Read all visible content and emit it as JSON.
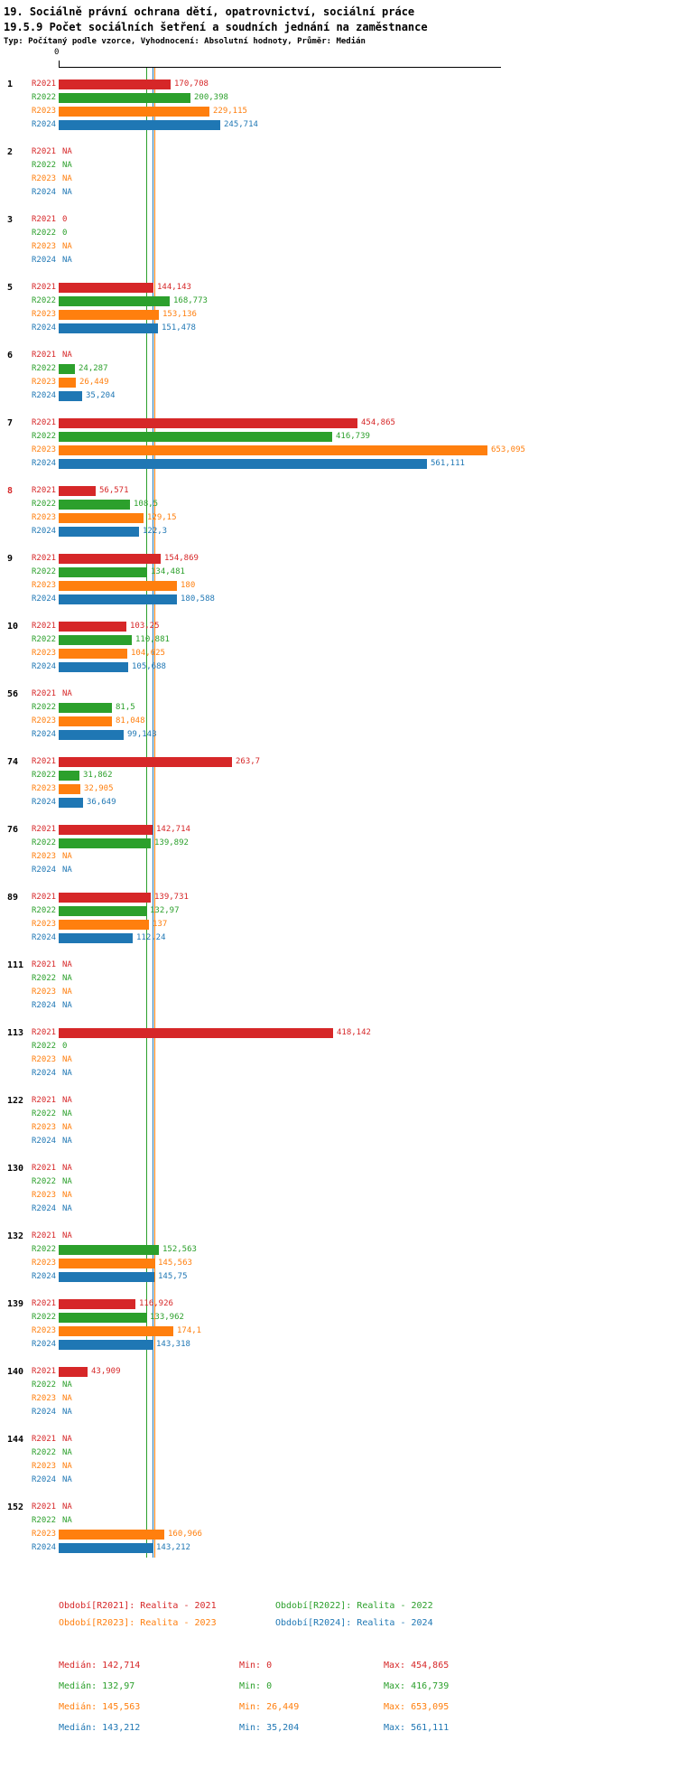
{
  "header": {
    "title_line1": "19. Sociálně právní ochrana dětí, opatrovnictví, sociální práce",
    "title_line2": "19.5.9 Počet sociálních šetření a soudních jednání na zaměstnance",
    "subtitle": "Typ: Počítaný podle vzorce, Vyhodnocení: Absolutní hodnoty, Průměr: Medián"
  },
  "axis": {
    "zero_label": "0"
  },
  "colors": {
    "r2021": "#d62728",
    "r2022": "#2ca02c",
    "r2023": "#ff7f0e",
    "r2024": "#1f77b4",
    "axis": "#000000",
    "group_label": "#000000",
    "highlight_group_label": "#d62728"
  },
  "chart_data": {
    "type": "bar",
    "orientation": "horizontal",
    "title": "19.5.9 Počet sociálních šetření a soudních jednání na zaměstnance",
    "series_labels": [
      "R2021",
      "R2022",
      "R2023",
      "R2024"
    ],
    "series_colors": [
      "#d62728",
      "#2ca02c",
      "#ff7f0e",
      "#1f77b4"
    ],
    "xlim": [
      0,
      670
    ],
    "na_label": "NA",
    "grid": false,
    "legend_position": "bottom",
    "medians": [
      142.714,
      132.97,
      145.563,
      143.212
    ],
    "groups": [
      {
        "id": "1",
        "highlight": false,
        "values": [
          170.708,
          200.398,
          229.115,
          245.714
        ],
        "labels": [
          "170,708",
          "200,398",
          "229,115",
          "245,714"
        ]
      },
      {
        "id": "2",
        "highlight": false,
        "values": [
          null,
          null,
          null,
          null
        ],
        "labels": [
          "NA",
          "NA",
          "NA",
          "NA"
        ]
      },
      {
        "id": "3",
        "highlight": false,
        "values": [
          0,
          0,
          null,
          null
        ],
        "labels": [
          "0",
          "0",
          "NA",
          "NA"
        ]
      },
      {
        "id": "5",
        "highlight": false,
        "values": [
          144.143,
          168.773,
          153.136,
          151.478
        ],
        "labels": [
          "144,143",
          "168,773",
          "153,136",
          "151,478"
        ]
      },
      {
        "id": "6",
        "highlight": false,
        "values": [
          null,
          24.287,
          26.449,
          35.204
        ],
        "labels": [
          "NA",
          "24,287",
          "26,449",
          "35,204"
        ]
      },
      {
        "id": "7",
        "highlight": false,
        "values": [
          454.865,
          416.739,
          653.095,
          561.111
        ],
        "labels": [
          "454,865",
          "416,739",
          "653,095",
          "561,111"
        ]
      },
      {
        "id": "8",
        "highlight": true,
        "values": [
          56.571,
          108.5,
          129.15,
          122.3
        ],
        "labels": [
          "56,571",
          "108,5",
          "129,15",
          "122,3"
        ]
      },
      {
        "id": "9",
        "highlight": false,
        "values": [
          154.869,
          134.481,
          180,
          180.588
        ],
        "labels": [
          "154,869",
          "134,481",
          "180",
          "180,588"
        ]
      },
      {
        "id": "10",
        "highlight": false,
        "values": [
          103.25,
          110.881,
          104.625,
          105.688
        ],
        "labels": [
          "103,25",
          "110,881",
          "104,625",
          "105,688"
        ]
      },
      {
        "id": "56",
        "highlight": false,
        "values": [
          null,
          81.5,
          81.048,
          99.143
        ],
        "labels": [
          "NA",
          "81,5",
          "81,048",
          "99,143"
        ]
      },
      {
        "id": "74",
        "highlight": false,
        "values": [
          263.7,
          31.862,
          32.905,
          36.649
        ],
        "labels": [
          "263,7",
          "31,862",
          "32,905",
          "36,649"
        ]
      },
      {
        "id": "76",
        "highlight": false,
        "values": [
          142.714,
          139.892,
          null,
          null
        ],
        "labels": [
          "142,714",
          "139,892",
          "NA",
          "NA"
        ]
      },
      {
        "id": "89",
        "highlight": false,
        "values": [
          139.731,
          132.97,
          137,
          112.24
        ],
        "labels": [
          "139,731",
          "132,97",
          "137",
          "112,24"
        ]
      },
      {
        "id": "111",
        "highlight": false,
        "values": [
          null,
          null,
          null,
          null
        ],
        "labels": [
          "NA",
          "NA",
          "NA",
          "NA"
        ]
      },
      {
        "id": "113",
        "highlight": false,
        "values": [
          418.142,
          0,
          null,
          null
        ],
        "labels": [
          "418,142",
          "0",
          "NA",
          "NA"
        ]
      },
      {
        "id": "122",
        "highlight": false,
        "values": [
          null,
          null,
          null,
          null
        ],
        "labels": [
          "NA",
          "NA",
          "NA",
          "NA"
        ]
      },
      {
        "id": "130",
        "highlight": false,
        "values": [
          null,
          null,
          null,
          null
        ],
        "labels": [
          "NA",
          "NA",
          "NA",
          "NA"
        ]
      },
      {
        "id": "132",
        "highlight": false,
        "values": [
          null,
          152.563,
          145.563,
          145.75
        ],
        "labels": [
          "NA",
          "152,563",
          "145,563",
          "145,75"
        ]
      },
      {
        "id": "139",
        "highlight": false,
        "values": [
          116.926,
          133.962,
          174.1,
          143.318
        ],
        "labels": [
          "116,926",
          "133,962",
          "174,1",
          "143,318"
        ]
      },
      {
        "id": "140",
        "highlight": false,
        "values": [
          43.909,
          null,
          null,
          null
        ],
        "labels": [
          "43,909",
          "NA",
          "NA",
          "NA"
        ]
      },
      {
        "id": "144",
        "highlight": false,
        "values": [
          null,
          null,
          null,
          null
        ],
        "labels": [
          "NA",
          "NA",
          "NA",
          "NA"
        ]
      },
      {
        "id": "152",
        "highlight": false,
        "values": [
          null,
          null,
          160.966,
          143.212
        ],
        "labels": [
          "NA",
          "NA",
          "160,966",
          "143,212"
        ]
      }
    ]
  },
  "legend": {
    "items": [
      {
        "label": "Období[R2021]: Realita - 2021",
        "color": "#d62728"
      },
      {
        "label": "Období[R2022]: Realita - 2022",
        "color": "#2ca02c"
      },
      {
        "label": "Období[R2023]: Realita - 2023",
        "color": "#ff7f0e"
      },
      {
        "label": "Období[R2024]: Realita - 2024",
        "color": "#1f77b4"
      }
    ]
  },
  "stats": {
    "rows": [
      {
        "median": "Medián: 142,714",
        "min": "Min: 0",
        "max": "Max: 454,865",
        "color": "#d62728"
      },
      {
        "median": "Medián: 132,97",
        "min": "Min: 0",
        "max": "Max: 416,739",
        "color": "#2ca02c"
      },
      {
        "median": "Medián: 145,563",
        "min": "Min: 26,449",
        "max": "Max: 653,095",
        "color": "#ff7f0e"
      },
      {
        "median": "Medián: 143,212",
        "min": "Min: 35,204",
        "max": "Max: 561,111",
        "color": "#1f77b4"
      }
    ]
  }
}
